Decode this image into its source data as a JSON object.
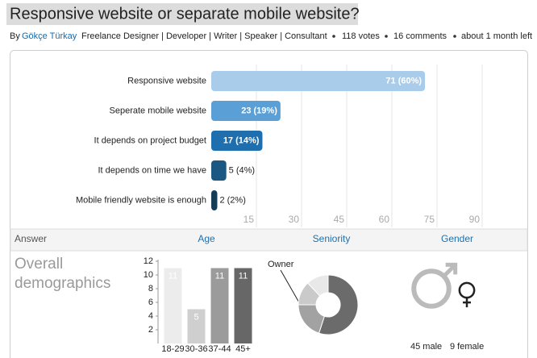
{
  "header": {
    "title": "Responsive website or separate mobile website?",
    "by": "By",
    "author": "Gökçe Türkay",
    "author_title": "Freelance Designer | Developer | Writer | Speaker | Consultant",
    "votes": "118 votes",
    "comments": "16 comments",
    "time_left": "about 1 month left"
  },
  "tabs": [
    "Answer",
    "Age",
    "Seniority",
    "Gender"
  ],
  "demographics_title": "Overall demographics",
  "chart_data": [
    {
      "type": "hbar",
      "categories": [
        "Responsive website",
        "Seperate mobile website",
        "It depends on project budget",
        "It depends on time we have",
        "Mobile friendly website is enough"
      ],
      "values": [
        71,
        23,
        17,
        5,
        2
      ],
      "value_labels": [
        "71 (60%)",
        "23 (19%)",
        "17 (14%)",
        "5 (4%)",
        "2 (2%)"
      ],
      "colors": [
        "#a8cce9",
        "#5aa0d6",
        "#1f6fae",
        "#1b5783",
        "#163c58"
      ],
      "xlim": [
        0,
        105
      ],
      "xticks": [
        15,
        30,
        45,
        60,
        75,
        90
      ],
      "grid": true
    },
    {
      "type": "bar",
      "categories": [
        "18-29",
        "30-36",
        "37-44",
        "45+"
      ],
      "values": [
        11,
        5,
        11,
        11
      ],
      "colors": [
        "#ececec",
        "#cfcfcf",
        "#9b9b9b",
        "#676767"
      ],
      "ylim": [
        0,
        12
      ],
      "yticks": [
        2,
        4,
        6,
        8,
        10,
        12
      ]
    },
    {
      "type": "donut",
      "categories": [
        null,
        "Owner",
        null,
        null
      ],
      "values": [
        55,
        20,
        13,
        12
      ],
      "colors": [
        "#6b6b6b",
        "#a2a2a2",
        "#cacaca",
        "#e8e8e8"
      ]
    },
    {
      "type": "icon",
      "values": [
        45,
        9
      ],
      "value_labels": [
        "45 male",
        "9 female"
      ]
    }
  ]
}
